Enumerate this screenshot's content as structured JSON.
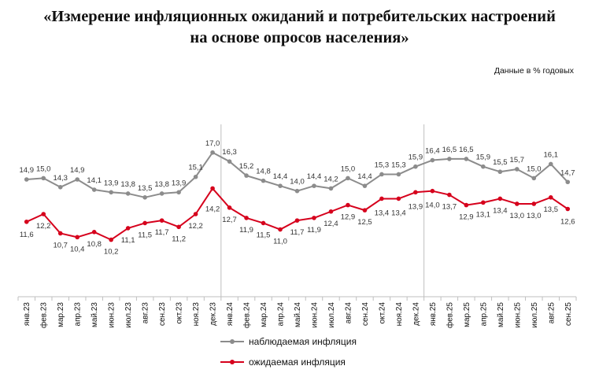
{
  "title_line1": "«Измерение инфляционных ожиданий и потребительских настроений",
  "title_line2": "на основе опросов населения»",
  "units_note": "Данные в % годовых",
  "colors": {
    "observed": "#8c8c8c",
    "expected": "#d6001c",
    "axis": "#bfbfbf"
  },
  "chart_data": {
    "type": "line",
    "categories": [
      "янв.23",
      "фев.23",
      "мар.23",
      "апр.23",
      "май.23",
      "июн.23",
      "июл.23",
      "авг.23",
      "сен.23",
      "окт.23",
      "ноя.23",
      "дек.23",
      "янв.24",
      "фев.24",
      "мар.24",
      "апр.24",
      "май.24",
      "июн.24",
      "июл.24",
      "авг.24",
      "сен.24",
      "окт.24",
      "ноя.24",
      "дек.24",
      "янв.25",
      "фев.25",
      "мар.25",
      "апр.25",
      "май.25",
      "июн.25",
      "июл.25",
      "авг.25",
      "сен.25"
    ],
    "series": [
      {
        "name": "наблюдаемая инфляция",
        "values": [
          14.9,
          15.0,
          14.3,
          14.9,
          14.1,
          13.9,
          13.8,
          13.5,
          13.8,
          13.9,
          15.1,
          17.0,
          16.3,
          15.2,
          14.8,
          14.4,
          14.0,
          14.4,
          14.2,
          15.0,
          14.4,
          15.3,
          15.3,
          15.9,
          16.4,
          16.5,
          16.5,
          15.9,
          15.5,
          15.7,
          15.0,
          16.1,
          14.7
        ]
      },
      {
        "name": "ожидаемая инфляция",
        "values": [
          11.6,
          12.2,
          10.7,
          10.4,
          10.8,
          10.2,
          11.1,
          11.5,
          11.7,
          11.2,
          12.2,
          14.2,
          12.7,
          11.9,
          11.5,
          11.0,
          11.7,
          11.9,
          12.4,
          12.9,
          12.5,
          13.4,
          13.4,
          13.9,
          14.0,
          13.7,
          12.9,
          13.1,
          13.4,
          13.0,
          13.0,
          13.5,
          12.6
        ]
      }
    ],
    "legend_position": "bottom",
    "grid": false
  }
}
